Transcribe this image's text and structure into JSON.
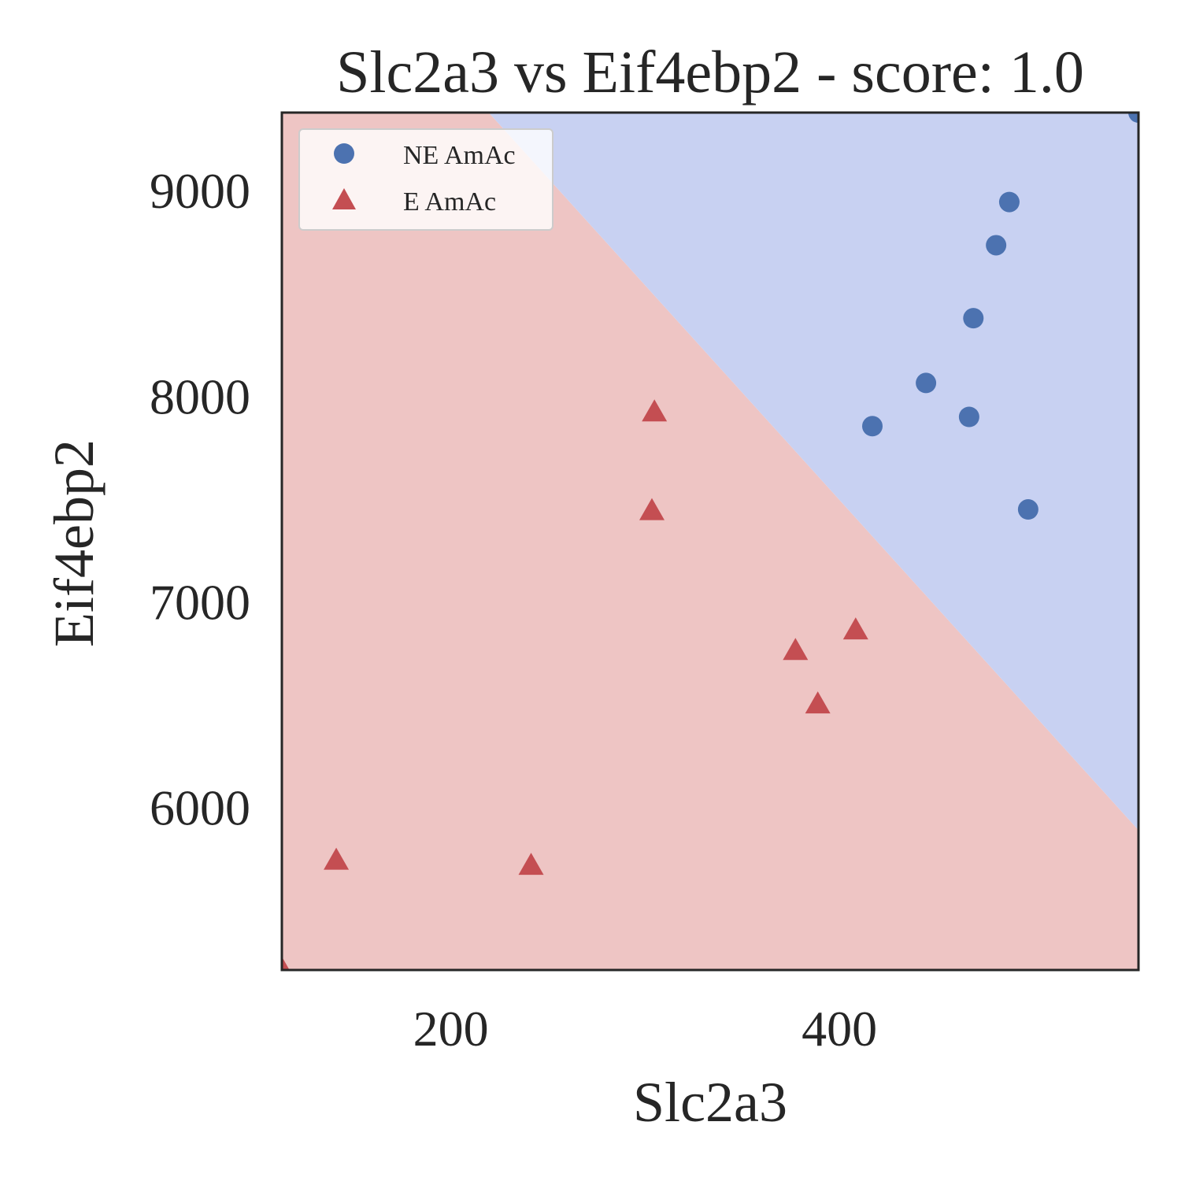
{
  "chart_data": {
    "type": "scatter",
    "title": "Slc2a3 vs Eif4ebp2 - score: 1.0",
    "xlabel": "Slc2a3",
    "ylabel": "Eif4ebp2",
    "xlim": [
      113,
      554
    ],
    "ylim": [
      5210,
      9380
    ],
    "xticks": [
      200,
      400
    ],
    "yticks": [
      6000,
      7000,
      8000,
      9000
    ],
    "xtick_labels": [
      "200",
      "400"
    ],
    "ytick_labels": [
      "6000",
      "7000",
      "8000",
      "9000"
    ],
    "grid": false,
    "legend_position": "top-left",
    "decision_boundary": {
      "points": [
        [
          219.5,
          9380
        ],
        [
          554,
          5890
        ]
      ],
      "region_above": "NE AmAc",
      "region_below": "E AmAc",
      "color_above": "#c8d1f2",
      "color_below": "#eec5c4"
    },
    "series": [
      {
        "name": "NE AmAc",
        "marker": "circle",
        "color": "#4c72b0",
        "points": [
          [
            554,
            9380
          ],
          [
            487.5,
            8945
          ],
          [
            480.7,
            8735
          ],
          [
            469,
            8380
          ],
          [
            444.6,
            8065
          ],
          [
            466.8,
            7900
          ],
          [
            417,
            7855
          ],
          [
            497.2,
            7450
          ]
        ]
      },
      {
        "name": "E AmAc",
        "marker": "triangle",
        "color": "#c44e52",
        "points": [
          [
            304.8,
            7920
          ],
          [
            303.5,
            7440
          ],
          [
            377.4,
            6760
          ],
          [
            408.4,
            6860
          ],
          [
            388.9,
            6500
          ],
          [
            141,
            5740
          ],
          [
            241.3,
            5715
          ],
          [
            113,
            5210
          ]
        ]
      }
    ]
  }
}
